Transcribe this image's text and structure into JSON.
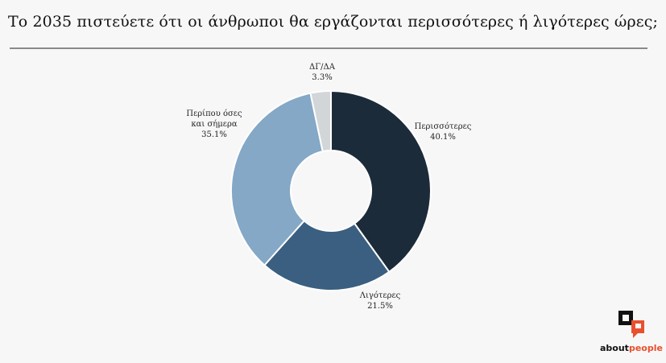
{
  "title": "Το 2035 πιστεύετε ότι οι άνθρωποι θα εργάζονται περισσότερες ή λιγότερες ώρες;",
  "chart_data": {
    "type": "pie",
    "donut": true,
    "title": "Το 2035 πιστεύετε ότι οι άνθρωποι θα εργάζονται περισσότερες ή λιγότερες ώρες;",
    "slices": [
      {
        "label": [
          "Περισσότερες"
        ],
        "value": 40.1,
        "value_label": "40.1%",
        "color": "#1c2b3a"
      },
      {
        "label": [
          "Λιγότερες"
        ],
        "value": 21.5,
        "value_label": "21.5%",
        "color": "#3a5f80"
      },
      {
        "label": [
          "Περίπου όσες",
          "και σήμερα"
        ],
        "value": 35.1,
        "value_label": "35.1%",
        "color": "#84a8c6"
      },
      {
        "label": [
          "ΔΓ/ΔΑ"
        ],
        "value": 3.3,
        "value_label": "3.3%",
        "color": "#d3d6d9"
      }
    ]
  },
  "brand": {
    "name_part1": "about",
    "name_part2": "people",
    "accent_color": "#e9502f"
  }
}
